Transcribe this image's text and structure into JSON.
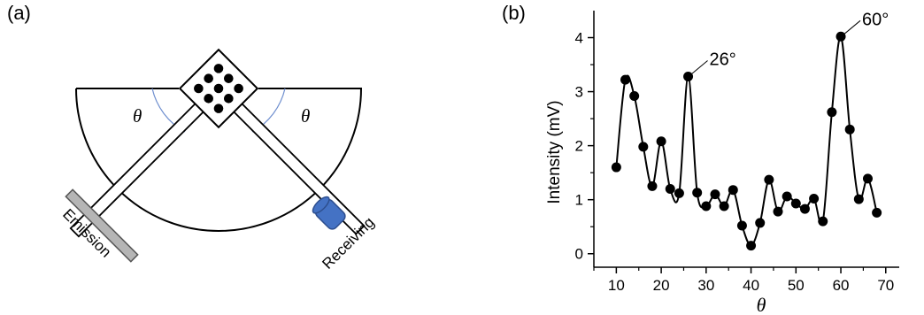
{
  "panels": {
    "a": "(a)",
    "b": "(b)"
  },
  "diagram": {
    "theta_left": "θ",
    "theta_right": "θ",
    "emission_label": "Emission",
    "receiving_label": "Receiving",
    "colors": {
      "emitter": "#b5b5b5",
      "receiver": "#4472c4",
      "receiver_dark": "#2e4f8f",
      "arc": "#6f8fcf"
    }
  },
  "chart_data": {
    "type": "line",
    "xlabel": "θ",
    "ylabel": "Intensity (mV)",
    "xlim": [
      5,
      73
    ],
    "ylim": [
      -0.25,
      4.5
    ],
    "xticks": [
      10,
      20,
      30,
      40,
      50,
      60,
      70
    ],
    "yticks": [
      0,
      1,
      2,
      3,
      4
    ],
    "grid": false,
    "marker": "circle",
    "series": [
      {
        "x": [
          10,
          12,
          14,
          16,
          18,
          20,
          22,
          24,
          26,
          28,
          30,
          32,
          34,
          36,
          38,
          40,
          42,
          44,
          46,
          48,
          50,
          52,
          54,
          56,
          58,
          60,
          62,
          64,
          66,
          68
        ],
        "values": [
          1.6,
          3.22,
          2.92,
          1.98,
          1.25,
          2.08,
          1.2,
          1.12,
          3.28,
          1.13,
          0.88,
          1.1,
          0.88,
          1.18,
          0.52,
          0.15,
          0.57,
          1.37,
          0.78,
          1.06,
          0.93,
          0.83,
          1.02,
          0.6,
          2.62,
          4.02,
          2.3,
          1.01,
          1.39,
          0.76
        ]
      }
    ],
    "annotations": [
      {
        "text": "26°",
        "x": 26,
        "y": 3.28
      },
      {
        "text": "60°",
        "x": 60,
        "y": 4.02
      }
    ]
  }
}
